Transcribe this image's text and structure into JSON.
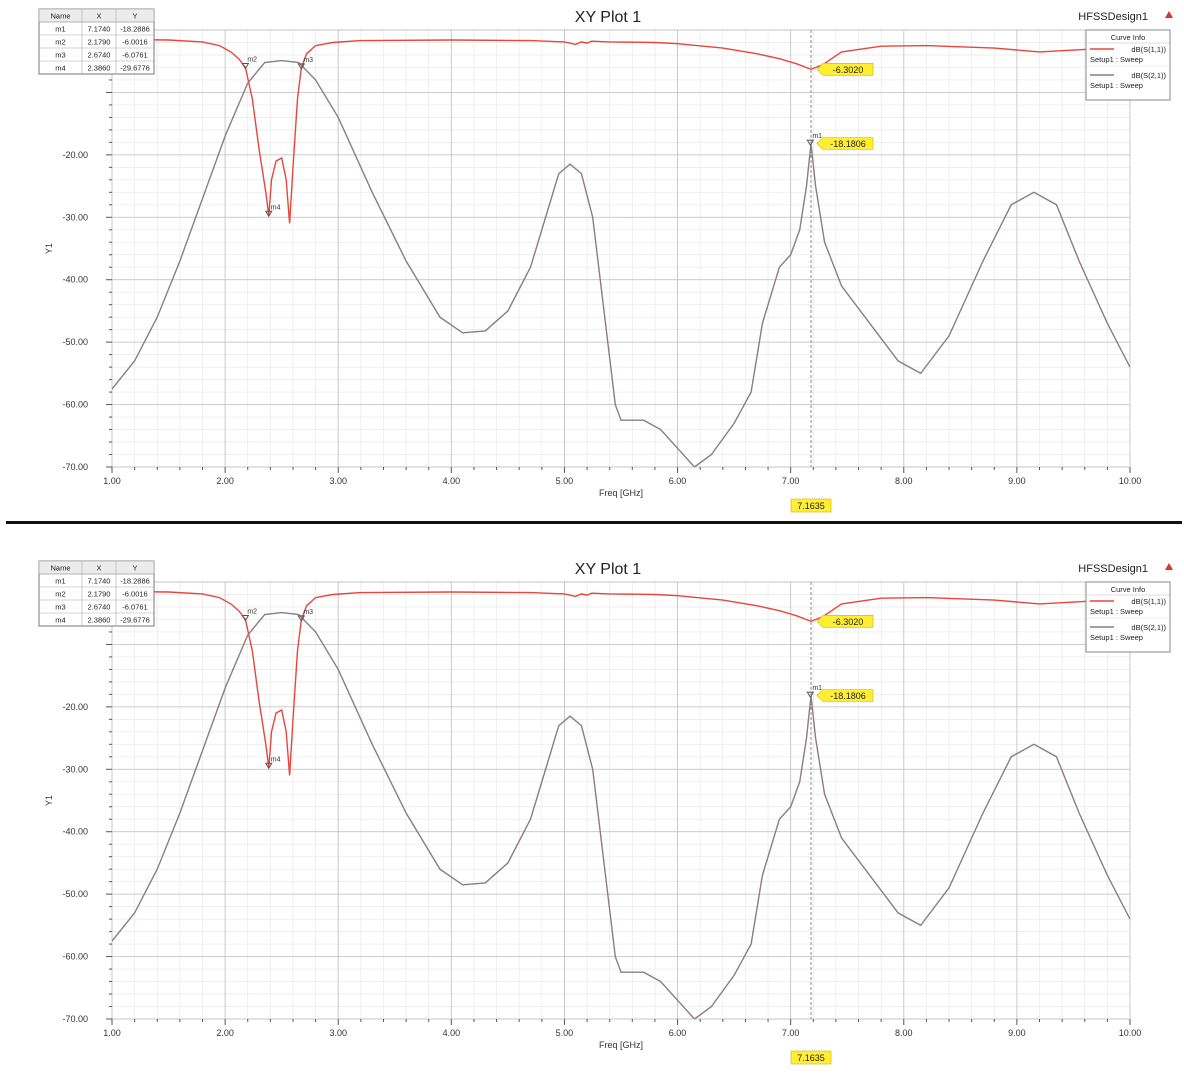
{
  "chart_data": [
    {
      "type": "line",
      "title": "XY Plot 1",
      "design_label": "HFSSDesign1",
      "xlabel": "Freq [GHz]",
      "ylabel": "Y1",
      "xlim": [
        1.0,
        10.0
      ],
      "ylim": [
        -70.0,
        0.0
      ],
      "x_ticks": [
        "1.00",
        "2.00",
        "3.00",
        "4.00",
        "5.00",
        "6.00",
        "7.00",
        "8.00",
        "9.00",
        "10.00"
      ],
      "y_ticks": [
        "-20.00",
        "-30.00",
        "-40.00",
        "-50.00",
        "-60.00",
        "-70.00"
      ],
      "grid": true,
      "legend": {
        "title": "Curve Info",
        "position": "top-right",
        "entries": [
          {
            "name": "dB(S(1,1))",
            "setup": "Setup1 : Sweep",
            "color": "#e8463c"
          },
          {
            "name": "dB(S(2,1))",
            "setup": "Setup1 : Sweep",
            "color": "#8c7c80"
          }
        ]
      },
      "marker_table": {
        "headers": [
          "Name",
          "X",
          "Y"
        ],
        "rows": [
          [
            "m1",
            "7.1740",
            "-18.2886"
          ],
          [
            "m2",
            "2.1790",
            "-6.0016"
          ],
          [
            "m3",
            "2.6740",
            "-6.0761"
          ],
          [
            "m4",
            "2.3860",
            "-29.6776"
          ]
        ]
      },
      "markers": [
        {
          "name": "m1",
          "x": 7.174,
          "y": -18.2886
        },
        {
          "name": "m2",
          "x": 2.179,
          "y": -6.0016
        },
        {
          "name": "m3",
          "x": 2.674,
          "y": -6.0761
        },
        {
          "name": "m4",
          "x": 2.386,
          "y": -29.6776
        }
      ],
      "value_labels": [
        {
          "text": "-6.3020",
          "x": 7.18,
          "y": -6.302
        },
        {
          "text": "-18.1806",
          "x": 7.18,
          "y": -18.1806
        }
      ],
      "cursor": {
        "x": 7.18,
        "label": "7.1635"
      },
      "series": [
        {
          "name": "dB(S(1,1))",
          "color": "#e8463c",
          "points": [
            [
              1.0,
              -1.5
            ],
            [
              1.5,
              -1.6
            ],
            [
              1.8,
              -1.9
            ],
            [
              1.95,
              -2.5
            ],
            [
              2.05,
              -3.5
            ],
            [
              2.12,
              -4.6
            ],
            [
              2.179,
              -6.0
            ],
            [
              2.24,
              -11
            ],
            [
              2.3,
              -19
            ],
            [
              2.36,
              -26
            ],
            [
              2.386,
              -29.7
            ],
            [
              2.41,
              -24
            ],
            [
              2.45,
              -21
            ],
            [
              2.5,
              -20.5
            ],
            [
              2.54,
              -24
            ],
            [
              2.57,
              -31
            ],
            [
              2.6,
              -22
            ],
            [
              2.64,
              -11
            ],
            [
              2.674,
              -6.08
            ],
            [
              2.72,
              -3.8
            ],
            [
              2.8,
              -2.5
            ],
            [
              2.95,
              -2.0
            ],
            [
              3.2,
              -1.7
            ],
            [
              4.0,
              -1.6
            ],
            [
              4.7,
              -1.7
            ],
            [
              5.0,
              -1.9
            ],
            [
              5.1,
              -2.3
            ],
            [
              5.15,
              -1.9
            ],
            [
              5.2,
              -2.1
            ],
            [
              5.24,
              -1.8
            ],
            [
              5.4,
              -1.9
            ],
            [
              5.8,
              -2.0
            ],
            [
              6.0,
              -2.2
            ],
            [
              6.4,
              -2.9
            ],
            [
              6.7,
              -3.8
            ],
            [
              6.9,
              -4.6
            ],
            [
              7.05,
              -5.4
            ],
            [
              7.18,
              -6.3
            ],
            [
              7.28,
              -5.6
            ],
            [
              7.45,
              -3.5
            ],
            [
              7.8,
              -2.6
            ],
            [
              8.2,
              -2.5
            ],
            [
              8.8,
              -2.9
            ],
            [
              9.2,
              -3.5
            ],
            [
              9.6,
              -3.1
            ],
            [
              10.0,
              -2.7
            ]
          ]
        },
        {
          "name": "dB(S(2,1))",
          "color": "#8c7c80",
          "points": [
            [
              1.0,
              -57.5
            ],
            [
              1.2,
              -53
            ],
            [
              1.4,
              -46
            ],
            [
              1.6,
              -37
            ],
            [
              1.8,
              -27
            ],
            [
              2.0,
              -17
            ],
            [
              2.2,
              -8.5
            ],
            [
              2.35,
              -5.2
            ],
            [
              2.5,
              -4.9
            ],
            [
              2.65,
              -5.2
            ],
            [
              2.8,
              -8
            ],
            [
              3.0,
              -14
            ],
            [
              3.3,
              -26
            ],
            [
              3.6,
              -37
            ],
            [
              3.9,
              -46
            ],
            [
              4.1,
              -48.5
            ],
            [
              4.3,
              -48.2
            ],
            [
              4.5,
              -45
            ],
            [
              4.7,
              -38
            ],
            [
              4.85,
              -29
            ],
            [
              4.95,
              -23
            ],
            [
              5.05,
              -21.5
            ],
            [
              5.15,
              -23
            ],
            [
              5.25,
              -30
            ],
            [
              5.35,
              -45
            ],
            [
              5.45,
              -60
            ],
            [
              5.5,
              -62.5
            ],
            [
              5.7,
              -62.5
            ],
            [
              5.85,
              -64
            ],
            [
              6.0,
              -67
            ],
            [
              6.15,
              -70
            ],
            [
              6.3,
              -68
            ],
            [
              6.5,
              -63
            ],
            [
              6.65,
              -58
            ],
            [
              6.75,
              -47
            ],
            [
              6.9,
              -38
            ],
            [
              7.0,
              -36
            ],
            [
              7.08,
              -32
            ],
            [
              7.14,
              -25
            ],
            [
              7.18,
              -18.2
            ],
            [
              7.22,
              -25
            ],
            [
              7.3,
              -34
            ],
            [
              7.45,
              -41
            ],
            [
              7.7,
              -47
            ],
            [
              7.95,
              -53
            ],
            [
              8.15,
              -55
            ],
            [
              8.4,
              -49
            ],
            [
              8.7,
              -37
            ],
            [
              8.95,
              -28
            ],
            [
              9.15,
              -26
            ],
            [
              9.35,
              -28
            ],
            [
              9.55,
              -37
            ],
            [
              9.8,
              -47
            ],
            [
              10.0,
              -54
            ]
          ]
        }
      ]
    },
    {
      "type": "line",
      "title": "XY Plot 1",
      "design_label": "HFSSDesign1",
      "xlabel": "Freq [GHz]",
      "ylabel": "Y1",
      "xlim": [
        1.0,
        10.0
      ],
      "ylim": [
        -70.0,
        0.0
      ],
      "x_ticks": [
        "1.00",
        "2.00",
        "3.00",
        "4.00",
        "5.00",
        "6.00",
        "7.00",
        "8.00",
        "9.00",
        "10.00"
      ],
      "y_ticks": [
        "-20.00",
        "-30.00",
        "-40.00",
        "-50.00",
        "-60.00",
        "-70.00"
      ],
      "grid": true,
      "legend": {
        "title": "Curve Info",
        "position": "top-right",
        "entries": [
          {
            "name": "dB(S(1,1))",
            "setup": "Setup1 : Sweep",
            "color": "#e8463c"
          },
          {
            "name": "dB(S(2,1))",
            "setup": "Setup1 : Sweep",
            "color": "#8c7c80"
          }
        ]
      },
      "marker_table": {
        "headers": [
          "Name",
          "X",
          "Y"
        ],
        "rows": [
          [
            "m1",
            "7.1740",
            "-18.2886"
          ],
          [
            "m2",
            "2.1790",
            "-6.0016"
          ],
          [
            "m3",
            "2.6740",
            "-6.0761"
          ],
          [
            "m4",
            "2.3860",
            "-29.6776"
          ]
        ]
      },
      "markers": [
        {
          "name": "m1",
          "x": 7.174,
          "y": -18.2886
        },
        {
          "name": "m2",
          "x": 2.179,
          "y": -6.0016
        },
        {
          "name": "m3",
          "x": 2.674,
          "y": -6.0761
        },
        {
          "name": "m4",
          "x": 2.386,
          "y": -29.6776
        }
      ],
      "value_labels": [
        {
          "text": "-6.3020",
          "x": 7.18,
          "y": -6.302
        },
        {
          "text": "-18.1806",
          "x": 7.18,
          "y": -18.1806
        }
      ],
      "cursor": {
        "x": 7.18,
        "label": "7.1635"
      },
      "series": [
        {
          "name": "dB(S(1,1))",
          "color": "#e8463c",
          "points": [
            [
              1.0,
              -1.5
            ],
            [
              1.5,
              -1.6
            ],
            [
              1.8,
              -1.9
            ],
            [
              1.95,
              -2.5
            ],
            [
              2.05,
              -3.5
            ],
            [
              2.12,
              -4.6
            ],
            [
              2.179,
              -6.0
            ],
            [
              2.24,
              -11
            ],
            [
              2.3,
              -19
            ],
            [
              2.36,
              -26
            ],
            [
              2.386,
              -29.7
            ],
            [
              2.41,
              -24
            ],
            [
              2.45,
              -21
            ],
            [
              2.5,
              -20.5
            ],
            [
              2.54,
              -24
            ],
            [
              2.57,
              -31
            ],
            [
              2.6,
              -22
            ],
            [
              2.64,
              -11
            ],
            [
              2.674,
              -6.08
            ],
            [
              2.72,
              -3.8
            ],
            [
              2.8,
              -2.5
            ],
            [
              2.95,
              -2.0
            ],
            [
              3.2,
              -1.7
            ],
            [
              4.0,
              -1.6
            ],
            [
              4.7,
              -1.7
            ],
            [
              5.0,
              -1.9
            ],
            [
              5.1,
              -2.3
            ],
            [
              5.15,
              -1.9
            ],
            [
              5.2,
              -2.1
            ],
            [
              5.24,
              -1.8
            ],
            [
              5.4,
              -1.9
            ],
            [
              5.8,
              -2.0
            ],
            [
              6.0,
              -2.2
            ],
            [
              6.4,
              -2.9
            ],
            [
              6.7,
              -3.8
            ],
            [
              6.9,
              -4.6
            ],
            [
              7.05,
              -5.4
            ],
            [
              7.18,
              -6.3
            ],
            [
              7.28,
              -5.6
            ],
            [
              7.45,
              -3.5
            ],
            [
              7.8,
              -2.6
            ],
            [
              8.2,
              -2.5
            ],
            [
              8.8,
              -2.9
            ],
            [
              9.2,
              -3.5
            ],
            [
              9.6,
              -3.1
            ],
            [
              10.0,
              -2.7
            ]
          ]
        },
        {
          "name": "dB(S(2,1))",
          "color": "#8c7c80",
          "points": [
            [
              1.0,
              -57.5
            ],
            [
              1.2,
              -53
            ],
            [
              1.4,
              -46
            ],
            [
              1.6,
              -37
            ],
            [
              1.8,
              -27
            ],
            [
              2.0,
              -17
            ],
            [
              2.2,
              -8.5
            ],
            [
              2.35,
              -5.2
            ],
            [
              2.5,
              -4.9
            ],
            [
              2.65,
              -5.2
            ],
            [
              2.8,
              -8
            ],
            [
              3.0,
              -14
            ],
            [
              3.3,
              -26
            ],
            [
              3.6,
              -37
            ],
            [
              3.9,
              -46
            ],
            [
              4.1,
              -48.5
            ],
            [
              4.3,
              -48.2
            ],
            [
              4.5,
              -45
            ],
            [
              4.7,
              -38
            ],
            [
              4.85,
              -29
            ],
            [
              4.95,
              -23
            ],
            [
              5.05,
              -21.5
            ],
            [
              5.15,
              -23
            ],
            [
              5.25,
              -30
            ],
            [
              5.35,
              -45
            ],
            [
              5.45,
              -60
            ],
            [
              5.5,
              -62.5
            ],
            [
              5.7,
              -62.5
            ],
            [
              5.85,
              -64
            ],
            [
              6.0,
              -67
            ],
            [
              6.15,
              -70
            ],
            [
              6.3,
              -68
            ],
            [
              6.5,
              -63
            ],
            [
              6.65,
              -58
            ],
            [
              6.75,
              -47
            ],
            [
              6.9,
              -38
            ],
            [
              7.0,
              -36
            ],
            [
              7.08,
              -32
            ],
            [
              7.14,
              -25
            ],
            [
              7.18,
              -18.2
            ],
            [
              7.22,
              -25
            ],
            [
              7.3,
              -34
            ],
            [
              7.45,
              -41
            ],
            [
              7.7,
              -47
            ],
            [
              7.95,
              -53
            ],
            [
              8.15,
              -55
            ],
            [
              8.4,
              -49
            ],
            [
              8.7,
              -37
            ],
            [
              8.95,
              -28
            ],
            [
              9.15,
              -26
            ],
            [
              9.35,
              -28
            ],
            [
              9.55,
              -37
            ],
            [
              9.8,
              -47
            ],
            [
              10.0,
              -54
            ]
          ]
        }
      ]
    }
  ]
}
